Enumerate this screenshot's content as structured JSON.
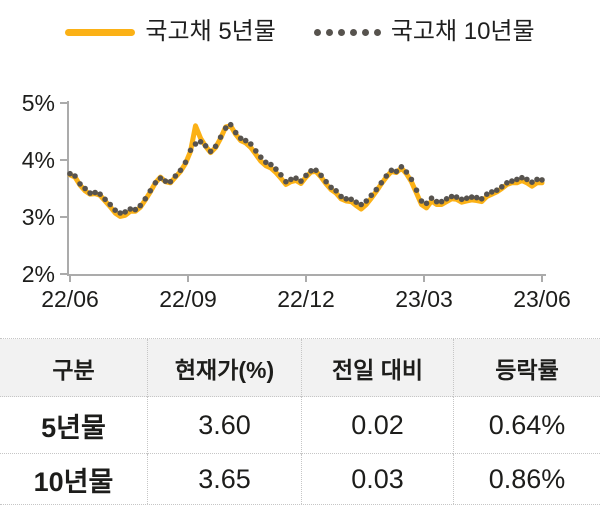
{
  "legend": {
    "items": [
      {
        "label": "국고채 5년물",
        "swatch": "line"
      },
      {
        "label": "국고채 10년물",
        "swatch": "dots"
      }
    ]
  },
  "chart_data": {
    "type": "line",
    "title": "",
    "xlabel": "",
    "ylabel": "",
    "ylim": [
      2,
      5
    ],
    "y_tick_values": [
      5,
      4,
      3,
      2
    ],
    "y_tick_labels": [
      "5%",
      "4%",
      "3%",
      "2%"
    ],
    "x_tick_labels": [
      "22/06",
      "22/09",
      "22/12",
      "23/03",
      "23/06"
    ],
    "grid": "off",
    "legend_position": "top",
    "axis_color": "#ababab",
    "label_color": "#1d1d1b",
    "series": [
      {
        "name": "국고채 5년물",
        "style": "solid",
        "color": "#FBB116",
        "values": [
          3.74,
          3.7,
          3.56,
          3.46,
          3.4,
          3.41,
          3.38,
          3.28,
          3.18,
          3.07,
          3.01,
          3.03,
          3.1,
          3.1,
          3.17,
          3.3,
          3.44,
          3.6,
          3.7,
          3.62,
          3.6,
          3.7,
          3.8,
          3.94,
          4.15,
          4.6,
          4.38,
          4.24,
          4.13,
          4.22,
          4.38,
          4.58,
          4.6,
          4.45,
          4.34,
          4.3,
          4.22,
          4.1,
          3.98,
          3.9,
          3.86,
          3.78,
          3.68,
          3.57,
          3.62,
          3.64,
          3.59,
          3.7,
          3.79,
          3.8,
          3.7,
          3.58,
          3.48,
          3.42,
          3.32,
          3.28,
          3.27,
          3.2,
          3.14,
          3.22,
          3.33,
          3.45,
          3.58,
          3.7,
          3.8,
          3.78,
          3.86,
          3.76,
          3.62,
          3.42,
          3.22,
          3.16,
          3.28,
          3.22,
          3.22,
          3.27,
          3.32,
          3.31,
          3.26,
          3.28,
          3.3,
          3.29,
          3.27,
          3.36,
          3.4,
          3.44,
          3.5,
          3.57,
          3.6,
          3.6,
          3.64,
          3.6,
          3.54,
          3.6,
          3.6
        ]
      },
      {
        "name": "국고채 10년물",
        "style": "dotted",
        "color": "#57534E",
        "values": [
          3.76,
          3.72,
          3.58,
          3.5,
          3.42,
          3.43,
          3.4,
          3.31,
          3.22,
          3.12,
          3.07,
          3.09,
          3.14,
          3.13,
          3.2,
          3.32,
          3.46,
          3.6,
          3.68,
          3.63,
          3.62,
          3.72,
          3.82,
          3.96,
          4.17,
          4.28,
          4.32,
          4.25,
          4.15,
          4.24,
          4.4,
          4.56,
          4.62,
          4.48,
          4.38,
          4.34,
          4.28,
          4.16,
          4.05,
          3.96,
          3.92,
          3.84,
          3.74,
          3.62,
          3.66,
          3.68,
          3.63,
          3.73,
          3.81,
          3.82,
          3.73,
          3.62,
          3.52,
          3.46,
          3.36,
          3.32,
          3.31,
          3.26,
          3.22,
          3.28,
          3.38,
          3.48,
          3.6,
          3.72,
          3.82,
          3.8,
          3.88,
          3.79,
          3.66,
          3.47,
          3.28,
          3.24,
          3.33,
          3.27,
          3.27,
          3.32,
          3.36,
          3.35,
          3.31,
          3.33,
          3.35,
          3.34,
          3.32,
          3.4,
          3.44,
          3.47,
          3.53,
          3.6,
          3.63,
          3.66,
          3.69,
          3.66,
          3.61,
          3.66,
          3.65
        ]
      }
    ]
  },
  "table": {
    "headers": [
      "구분",
      "현재가(%)",
      "전일 대비",
      "등락률"
    ],
    "rows": [
      {
        "label": "5년물",
        "current": "3.60",
        "change": "0.02",
        "rate": "0.64%"
      },
      {
        "label": "10년물",
        "current": "3.65",
        "change": "0.03",
        "rate": "0.86%"
      }
    ]
  },
  "colors": {
    "series_5yr": "#FBB116",
    "series_10yr": "#57534E",
    "axis": "#ababab",
    "table_header_bg": "#f2f2f2",
    "table_border": "#c6c6c6",
    "text": "#1d1d1b"
  }
}
